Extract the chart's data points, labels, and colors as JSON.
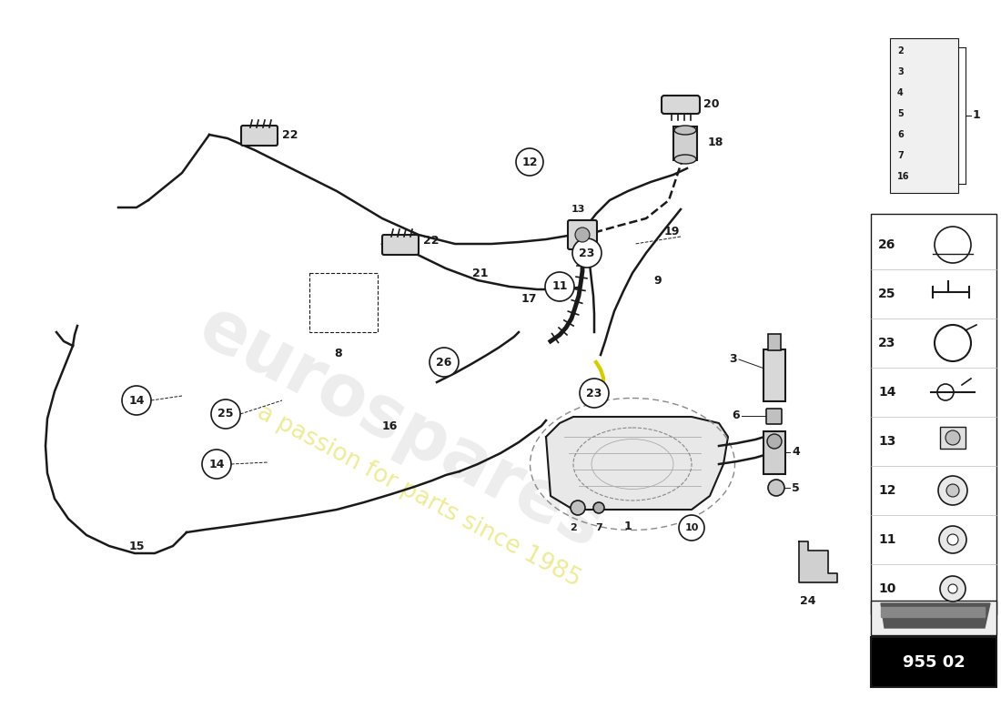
{
  "bg": "#ffffff",
  "lc": "#1a1a1a",
  "part_number": "955 02",
  "watermark1": "eurospares",
  "watermark2": "a passion for parts since 1985"
}
